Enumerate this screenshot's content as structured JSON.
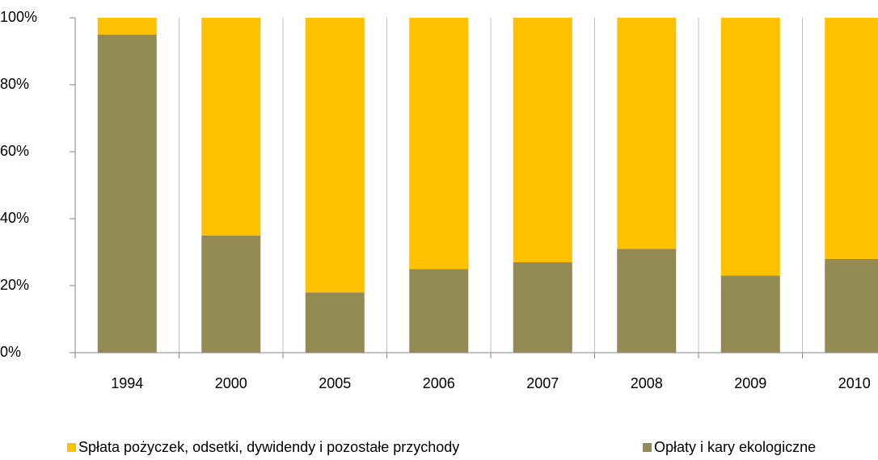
{
  "chart_data": {
    "type": "stacked_bar_100",
    "categories": [
      "1994",
      "2000",
      "2005",
      "2006",
      "2007",
      "2008",
      "2009",
      "2010"
    ],
    "series": [
      {
        "name": "Spłata pożyczek, odsetki, dywidendy i pozostałe przychody",
        "color": "#FFC000",
        "values": [
          5,
          65,
          82,
          75,
          73,
          69,
          77,
          72
        ]
      },
      {
        "name": "Opłaty i kary ekologiczne",
        "color": "#948A54",
        "values": [
          95,
          35,
          18,
          25,
          27,
          31,
          23,
          28
        ]
      }
    ],
    "ylim": [
      0,
      100
    ],
    "yticks": [
      {
        "value": 0,
        "label": "0%"
      },
      {
        "value": 20,
        "label": "20%"
      },
      {
        "value": 40,
        "label": "40%"
      },
      {
        "value": 60,
        "label": "60%"
      },
      {
        "value": 80,
        "label": "80%"
      },
      {
        "value": 100,
        "label": "100%"
      }
    ],
    "grid": true,
    "legend": "bottom"
  }
}
